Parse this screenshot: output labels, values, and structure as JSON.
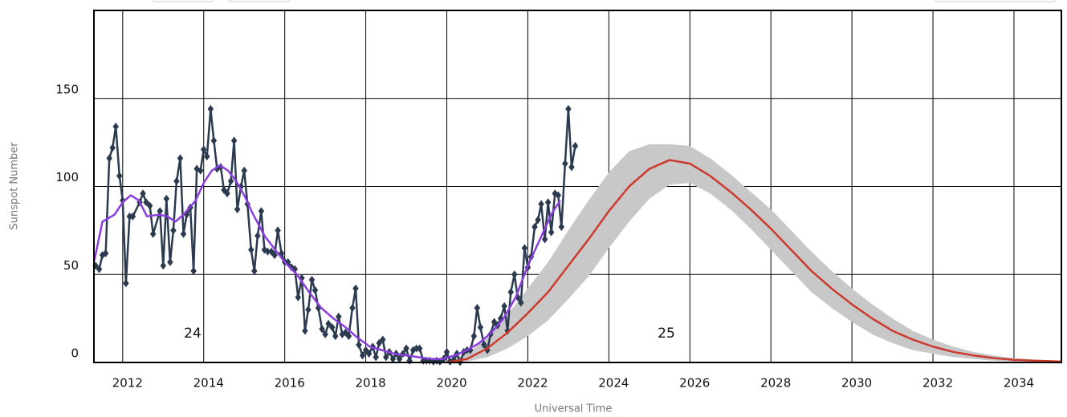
{
  "chart_data": {
    "type": "line",
    "xlabel": "Universal Time",
    "ylabel": "Sunspot Number",
    "xlim": [
      2011.29,
      2035.17
    ],
    "ylim": [
      0,
      200
    ],
    "xticks": [
      2012,
      2014,
      2016,
      2018,
      2020,
      2022,
      2024,
      2026,
      2028,
      2030,
      2032,
      2034
    ],
    "yticks": [
      0,
      50,
      100,
      150
    ],
    "grid": true,
    "annotations": [
      "24",
      "25"
    ],
    "band": {
      "color": "#c8c8c8",
      "x": [
        2020,
        2020.5,
        2021,
        2021.5,
        2022,
        2022.5,
        2023,
        2023.5,
        2024,
        2024.5,
        2025,
        2025.5,
        2026,
        2026.5,
        2027,
        2027.5,
        2028,
        2028.5,
        2029,
        2029.5,
        2030,
        2030.5,
        2031,
        2031.5,
        2032,
        2032.5,
        2033,
        2033.5,
        2034,
        2034.5,
        2035.17
      ],
      "upper": [
        1,
        5,
        14,
        27,
        42,
        57,
        75,
        92,
        108,
        120,
        124,
        124,
        123,
        116,
        107,
        97,
        87,
        75,
        63,
        52,
        42,
        33,
        25,
        18,
        13,
        9,
        6,
        4,
        2.5,
        1.5,
        1
      ],
      "lower": [
        0,
        0.5,
        3,
        8,
        15,
        24,
        36,
        49,
        65,
        80,
        93,
        101,
        102,
        96,
        87,
        76,
        64,
        52,
        40,
        31,
        23,
        16,
        11,
        7,
        5,
        3,
        2,
        1,
        0.5,
        0.3,
        0.2
      ]
    },
    "series": [
      {
        "color": "#2b3a4e",
        "marker": "diamond",
        "x": [
          2011.33,
          2011.42,
          2011.5,
          2011.58,
          2011.67,
          2011.75,
          2011.83,
          2011.92,
          2012.0,
          2012.08,
          2012.17,
          2012.25,
          2012.42,
          2012.5,
          2012.58,
          2012.67,
          2012.75,
          2012.92,
          2013.0,
          2013.08,
          2013.17,
          2013.25,
          2013.33,
          2013.42,
          2013.5,
          2013.58,
          2013.67,
          2013.75,
          2013.83,
          2013.92,
          2014.0,
          2014.08,
          2014.17,
          2014.25,
          2014.33,
          2014.42,
          2014.5,
          2014.58,
          2014.67,
          2014.75,
          2014.83,
          2014.92,
          2015.0,
          2015.08,
          2015.17,
          2015.25,
          2015.33,
          2015.42,
          2015.5,
          2015.58,
          2015.67,
          2015.75,
          2015.83,
          2015.92,
          2016.0,
          2016.08,
          2016.17,
          2016.25,
          2016.33,
          2016.42,
          2016.5,
          2016.58,
          2016.67,
          2016.75,
          2016.83,
          2016.92,
          2017.0,
          2017.08,
          2017.17,
          2017.25,
          2017.33,
          2017.42,
          2017.5,
          2017.58,
          2017.67,
          2017.75,
          2017.83,
          2017.92,
          2018.0,
          2018.08,
          2018.17,
          2018.25,
          2018.33,
          2018.42,
          2018.5,
          2018.58,
          2018.67,
          2018.75,
          2018.83,
          2018.92,
          2019.0,
          2019.08,
          2019.17,
          2019.25,
          2019.33,
          2019.42,
          2019.5,
          2019.58,
          2019.67,
          2019.75,
          2019.83,
          2019.92,
          2020.0,
          2020.08,
          2020.17,
          2020.25,
          2020.33,
          2020.42,
          2020.5,
          2020.58,
          2020.67,
          2020.75,
          2020.83,
          2020.92,
          2021.0,
          2021.08,
          2021.17,
          2021.25,
          2021.33,
          2021.42,
          2021.5,
          2021.58,
          2021.67,
          2021.75,
          2021.83,
          2021.92,
          2022.0,
          2022.08,
          2022.17,
          2022.25,
          2022.33,
          2022.42,
          2022.5,
          2022.58,
          2022.67,
          2022.75,
          2022.83,
          2022.92,
          2023.0,
          2023.08,
          2023.17
        ],
        "values": [
          55,
          53,
          61,
          62,
          116,
          122,
          134,
          106,
          92,
          45,
          83,
          83,
          91,
          96,
          91,
          89,
          73,
          86,
          55,
          93,
          57,
          75,
          103,
          116,
          73,
          84,
          88,
          52,
          110,
          109,
          121,
          117,
          144,
          126,
          110,
          111,
          98,
          96,
          103,
          126,
          87,
          100,
          109,
          90,
          64,
          52,
          72,
          86,
          64,
          63,
          63,
          61,
          75,
          62,
          57,
          57,
          54,
          53,
          37,
          48,
          18,
          30,
          47,
          41,
          31,
          19,
          16,
          22,
          20,
          15,
          26,
          16,
          17,
          15,
          31,
          42,
          10,
          4,
          7,
          5,
          9,
          3,
          11,
          13,
          3,
          6,
          2,
          5,
          2,
          5,
          8,
          1,
          7,
          8,
          8,
          1,
          1,
          1,
          0.5,
          1,
          0.5,
          2,
          6,
          0.5,
          1.5,
          5,
          0.2,
          6,
          7,
          7,
          15,
          31,
          20,
          10,
          7,
          16,
          23,
          21,
          25,
          32,
          18,
          40,
          50,
          37,
          34,
          65,
          54,
          60,
          77,
          81,
          90,
          70,
          91,
          74,
          96,
          95,
          77,
          113,
          144,
          111,
          123
        ]
      },
      {
        "color": "#8a3ee0",
        "x": [
          2011.3,
          2011.5,
          2011.8,
          2012.0,
          2012.2,
          2012.4,
          2012.6,
          2012.9,
          2013.1,
          2013.3,
          2013.5,
          2013.8,
          2014.0,
          2014.2,
          2014.4,
          2014.6,
          2014.8,
          2015.0,
          2015.2,
          2015.5,
          2015.8,
          2016.0,
          2016.3,
          2016.6,
          2016.9,
          2017.2,
          2017.5,
          2017.8,
          2018.1,
          2018.4,
          2018.7,
          2019.0,
          2019.3,
          2019.6,
          2019.9,
          2020.2,
          2020.5,
          2020.8,
          2021.1,
          2021.4,
          2021.7,
          2022.0,
          2022.3,
          2022.6,
          2022.8
        ],
        "values": [
          58,
          80,
          84,
          91,
          95,
          92,
          83,
          84,
          83,
          80,
          84,
          92,
          102,
          109,
          112,
          109,
          103,
          95,
          85,
          72,
          63,
          57,
          50,
          40,
          31,
          25,
          20,
          14,
          9,
          7,
          5,
          4,
          3,
          2,
          2,
          4,
          7,
          11,
          17,
          25,
          37,
          55,
          70,
          85,
          92
        ]
      },
      {
        "color": "#cc3a2d",
        "x": [
          2020,
          2020.5,
          2021,
          2021.5,
          2022,
          2022.5,
          2023,
          2023.5,
          2024,
          2024.5,
          2025,
          2025.5,
          2026,
          2026.5,
          2027,
          2027.5,
          2028,
          2028.5,
          2029,
          2029.5,
          2030,
          2030.5,
          2031,
          2031.5,
          2032,
          2032.5,
          2033,
          2033.5,
          2034,
          2034.5,
          2035.17
        ],
        "values": [
          0,
          2,
          8,
          17,
          28,
          40,
          55,
          70,
          86,
          100,
          110,
          115,
          113,
          106,
          97,
          87,
          76,
          64,
          52,
          42,
          33,
          25,
          18,
          13,
          9,
          6,
          4,
          2.5,
          1.5,
          1,
          0.5
        ]
      }
    ]
  }
}
